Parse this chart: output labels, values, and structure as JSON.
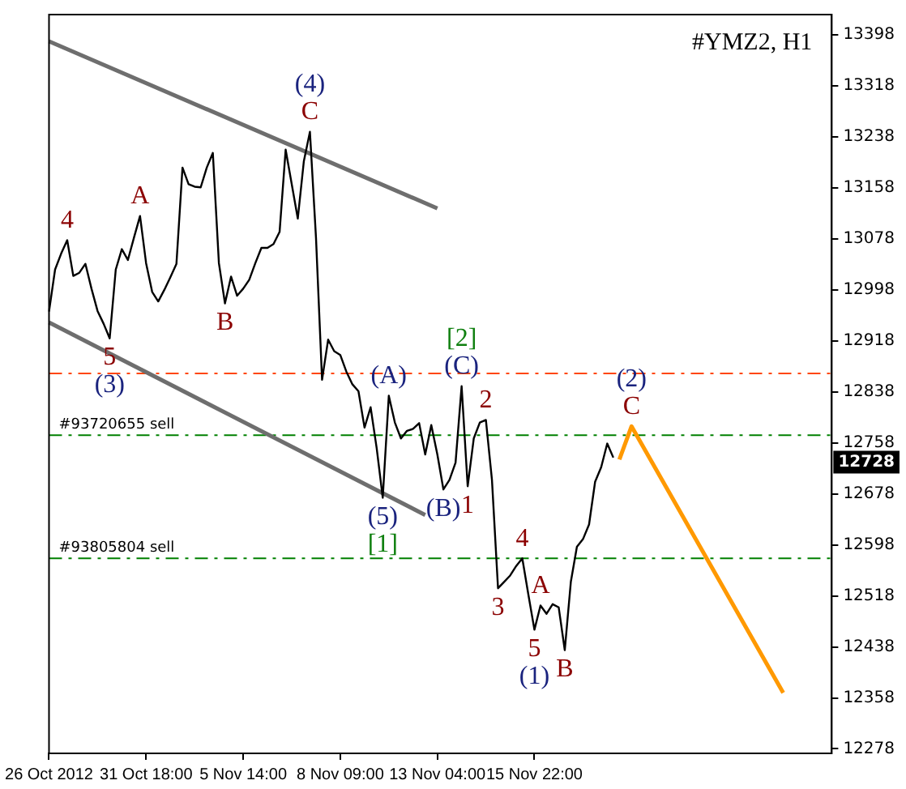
{
  "chart_data": {
    "type": "line",
    "title": "#YMZ2, H1",
    "categories": [
      "26 Oct 2012",
      null,
      null,
      null,
      null,
      null,
      null,
      null,
      null,
      null,
      null,
      null,
      null,
      null,
      null,
      null,
      "31 Oct 18:00",
      null,
      null,
      null,
      null,
      null,
      null,
      null,
      null,
      null,
      null,
      null,
      null,
      null,
      null,
      null,
      "5 Nov 14:00",
      null,
      null,
      null,
      null,
      null,
      null,
      null,
      null,
      null,
      null,
      null,
      null,
      null,
      null,
      null,
      "8 Nov 09:00",
      null,
      null,
      null,
      null,
      null,
      null,
      null,
      null,
      null,
      null,
      null,
      null,
      null,
      null,
      null,
      "13 Nov 04:00",
      null,
      null,
      null,
      null,
      null,
      null,
      null,
      null,
      null,
      null,
      null,
      null,
      null,
      null,
      null,
      "15 Nov 22:00",
      null,
      null,
      null,
      null,
      null,
      null,
      null,
      null,
      null,
      null,
      null,
      null,
      null,
      null,
      null,
      null,
      null,
      null,
      null,
      null,
      null,
      null,
      null,
      null,
      null,
      null,
      null,
      null,
      null,
      null,
      null,
      null,
      null,
      null,
      null,
      null,
      null,
      null,
      null,
      null,
      null,
      null,
      null,
      null,
      null,
      null,
      null,
      null,
      null
    ],
    "ylim": [
      12271,
      13430
    ],
    "yticks": [
      12278,
      12358,
      12438,
      12518,
      12598,
      12678,
      12758,
      12838,
      12918,
      12998,
      13078,
      13158,
      13238,
      13318,
      13398
    ],
    "legend": false,
    "marker": "none",
    "line_style": "solid",
    "series": [
      {
        "color": "#000000",
        "values": [
          12964,
          13030,
          13055,
          13076,
          13020,
          13025,
          13039,
          13000,
          12965,
          12945,
          12922,
          13030,
          13062,
          13045,
          13080,
          13114,
          13040,
          12995,
          12980,
          12998,
          13018,
          13039,
          13190,
          13164,
          13160,
          13159,
          13190,
          13213,
          13040,
          12977,
          13019,
          12989,
          13000,
          13014,
          13040,
          13064,
          13064,
          13070,
          13089,
          13218,
          13164,
          13110,
          13200,
          13246,
          13080,
          12857,
          12920,
          12902,
          12896,
          12870,
          12850,
          12839,
          12782,
          12814,
          12750,
          12672,
          12832,
          12790,
          12765,
          12777,
          12780,
          12789,
          12740,
          12786,
          12740,
          12685,
          12700,
          12727,
          12847,
          12690,
          12765,
          12790,
          12794,
          12700,
          12530,
          12540,
          12550,
          12565,
          12577,
          12520,
          12465,
          12503,
          12490,
          12505,
          12500,
          12433,
          12540,
          12595,
          12607,
          12630,
          12697,
          12720,
          12757,
          12735,
          null,
          null,
          null,
          null,
          null,
          null,
          null,
          null,
          null,
          null,
          null,
          null,
          null,
          null,
          null,
          null,
          null,
          null,
          null,
          null,
          null,
          null,
          null,
          null,
          null,
          null,
          null,
          null,
          null,
          null,
          null,
          null,
          null,
          null,
          null,
          null
        ]
      },
      {
        "color": "#6e6e6e",
        "values": [
          13388,
          null,
          null,
          null,
          null,
          null,
          null,
          null,
          null,
          null,
          null,
          null,
          null,
          null,
          null,
          null,
          null,
          null,
          null,
          null,
          null,
          null,
          null,
          null,
          null,
          null,
          null,
          null,
          null,
          null,
          null,
          null,
          null,
          null,
          null,
          null,
          null,
          null,
          null,
          null,
          null,
          null,
          null,
          null,
          null,
          null,
          null,
          null,
          null,
          null,
          null,
          null,
          null,
          null,
          null,
          null,
          null,
          null,
          null,
          null,
          null,
          null,
          null,
          null,
          13126,
          null,
          null,
          null,
          null,
          null,
          null,
          null,
          null,
          null,
          null,
          null,
          null,
          null,
          null,
          null,
          null,
          null,
          null,
          null,
          null,
          null,
          null,
          null,
          null,
          null,
          null,
          null,
          null,
          null,
          null,
          null,
          null,
          null,
          null,
          null,
          null,
          null,
          null,
          null,
          null,
          null,
          null,
          null,
          null,
          null,
          null,
          null,
          null,
          null,
          null,
          null,
          null,
          null,
          null,
          null,
          null,
          null,
          null,
          null,
          null,
          null,
          null,
          null,
          null,
          null
        ]
      },
      {
        "color": "#6e6e6e",
        "values": [
          12947,
          null,
          null,
          null,
          null,
          null,
          null,
          null,
          null,
          null,
          null,
          null,
          null,
          null,
          null,
          null,
          null,
          null,
          null,
          null,
          null,
          null,
          null,
          null,
          null,
          null,
          null,
          null,
          null,
          null,
          null,
          null,
          null,
          null,
          null,
          null,
          null,
          null,
          null,
          null,
          null,
          null,
          null,
          null,
          null,
          null,
          null,
          null,
          null,
          null,
          null,
          null,
          null,
          null,
          null,
          null,
          null,
          null,
          null,
          null,
          null,
          null,
          12645,
          null,
          null,
          null,
          null,
          null,
          null,
          null,
          null,
          null,
          null,
          null,
          null,
          null,
          null,
          null,
          null,
          null,
          null,
          null,
          null,
          null,
          null,
          null,
          null,
          null,
          null,
          null,
          null,
          null,
          null,
          null,
          null,
          null,
          null,
          null,
          null,
          null,
          null,
          null,
          null,
          null,
          null,
          null,
          null,
          null,
          null,
          null,
          null,
          null,
          null,
          null,
          null,
          null,
          null,
          null,
          null,
          null,
          null,
          null,
          null,
          null,
          null,
          null,
          null,
          null,
          null,
          null
        ]
      },
      {
        "color": "#ff9900",
        "values": [
          null,
          null,
          null,
          null,
          null,
          null,
          null,
          null,
          null,
          null,
          null,
          null,
          null,
          null,
          null,
          null,
          null,
          null,
          null,
          null,
          null,
          null,
          null,
          null,
          null,
          null,
          null,
          null,
          null,
          null,
          null,
          null,
          null,
          null,
          null,
          null,
          null,
          null,
          null,
          null,
          null,
          null,
          null,
          null,
          null,
          null,
          null,
          null,
          null,
          null,
          null,
          null,
          null,
          null,
          null,
          null,
          null,
          null,
          null,
          null,
          null,
          null,
          null,
          null,
          null,
          null,
          null,
          null,
          null,
          null,
          null,
          null,
          null,
          null,
          null,
          null,
          null,
          null,
          null,
          null,
          null,
          null,
          null,
          null,
          null,
          null,
          null,
          null,
          null,
          null,
          null,
          null,
          null,
          null,
          12732,
          null,
          12784,
          null,
          null,
          null,
          null,
          null,
          null,
          null,
          null,
          null,
          null,
          null,
          null,
          null,
          null,
          null,
          null,
          null,
          null,
          null,
          null,
          null,
          null,
          null,
          null,
          12366,
          null,
          null,
          null,
          null,
          null,
          null,
          null,
          null
        ]
      }
    ],
    "ref_lines": [
      {
        "axis": "y",
        "value": 12867,
        "label": null,
        "color": "#ff4500",
        "line_style": "dashed"
      },
      {
        "axis": "y",
        "value": 12770,
        "label": "#93720655 sell",
        "color": "#008000",
        "line_style": "dashed"
      },
      {
        "axis": "y",
        "value": 12577,
        "label": "#93805804 sell",
        "color": "#008000",
        "line_style": "dashed"
      }
    ],
    "annotations": [
      {
        "text": "4",
        "y": 13076
      },
      {
        "text": "5",
        "y": 12922
      },
      {
        "text": "(3)",
        "y": 12922
      },
      {
        "text": "A",
        "y": 13114
      },
      {
        "text": "B",
        "y": 12977
      },
      {
        "text": "C",
        "y": 13246
      },
      {
        "text": "(4)",
        "y": 13246
      },
      {
        "text": "(5)",
        "y": 12672
      },
      {
        "text": "[1]",
        "y": 12672
      },
      {
        "text": "(A)",
        "y": 12832
      },
      {
        "text": "(B)",
        "y": 12685
      },
      {
        "text": "(C)",
        "y": 12847
      },
      {
        "text": "[2]",
        "y": 12847
      },
      {
        "text": "1",
        "y": 12690
      },
      {
        "text": "2",
        "y": 12794
      },
      {
        "text": "3",
        "y": 12530
      },
      {
        "text": "4",
        "y": 12577
      },
      {
        "text": "5",
        "y": 12465
      },
      {
        "text": "(1)",
        "y": 12465
      },
      {
        "text": "A",
        "y": 12503
      },
      {
        "text": "B",
        "y": 12433
      },
      {
        "text": "C",
        "y": 12784
      },
      {
        "text": "(2)",
        "y": 12784
      },
      {
        "text": "12728",
        "y": 12728
      }
    ]
  }
}
